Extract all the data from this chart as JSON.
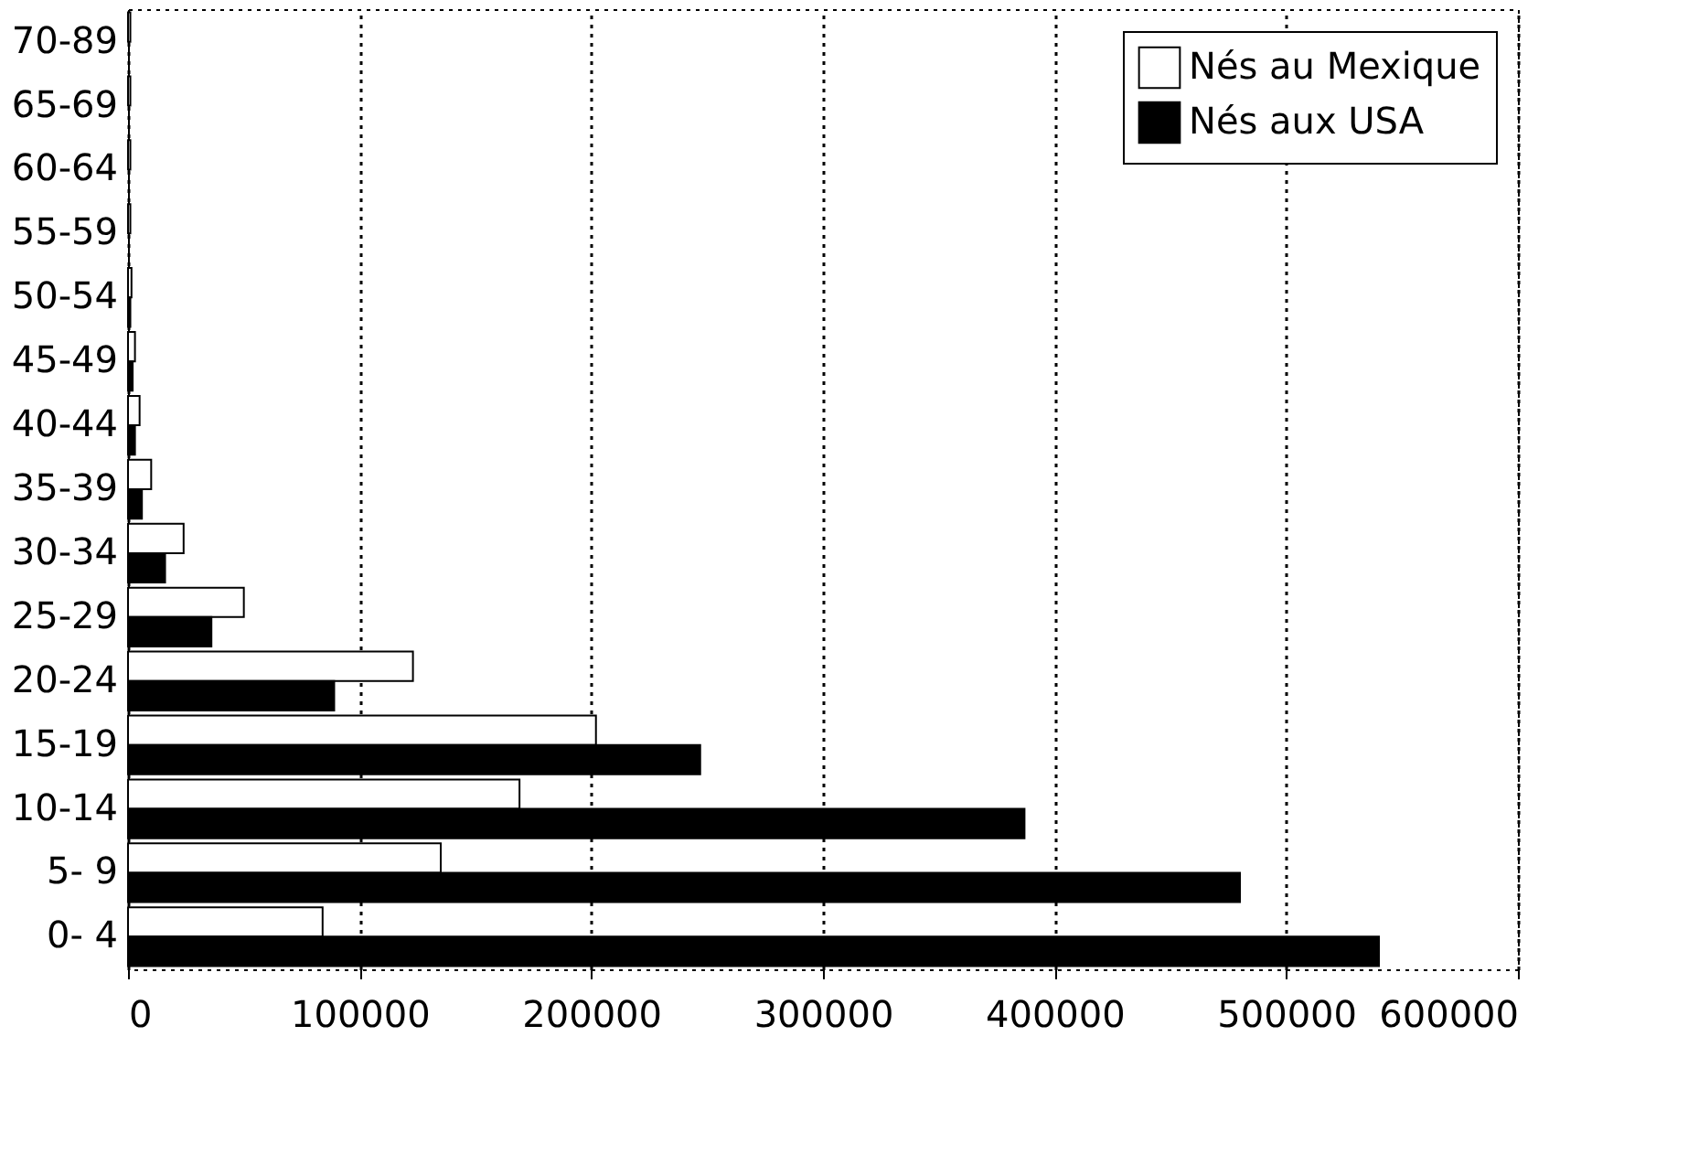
{
  "chart_data": {
    "type": "bar",
    "orientation": "horizontal",
    "categories": [
      "70-89",
      "65-69",
      "60-64",
      "55-59",
      "50-54",
      "45-49",
      "40-44",
      "35-39",
      "30-34",
      "25-29",
      "20-24",
      "15-19",
      "10-14",
      "5- 9",
      "0- 4"
    ],
    "series": [
      {
        "name": "Nés au Mexique",
        "color": "#ffffff",
        "values": [
          1000,
          1000,
          1000,
          1000,
          1500,
          3000,
          5000,
          10000,
          24000,
          50000,
          123000,
          202000,
          169000,
          135000,
          84000
        ]
      },
      {
        "name": "Nés aux USA",
        "color": "#000000",
        "values": [
          null,
          null,
          null,
          null,
          1000,
          2000,
          3000,
          6000,
          16000,
          36000,
          89000,
          247000,
          387000,
          480000,
          540000
        ]
      }
    ],
    "xlim": [
      0,
      600000
    ],
    "xticks": [
      0,
      100000,
      200000,
      300000,
      400000,
      500000,
      600000
    ],
    "grid": "x",
    "legend": "top right"
  }
}
